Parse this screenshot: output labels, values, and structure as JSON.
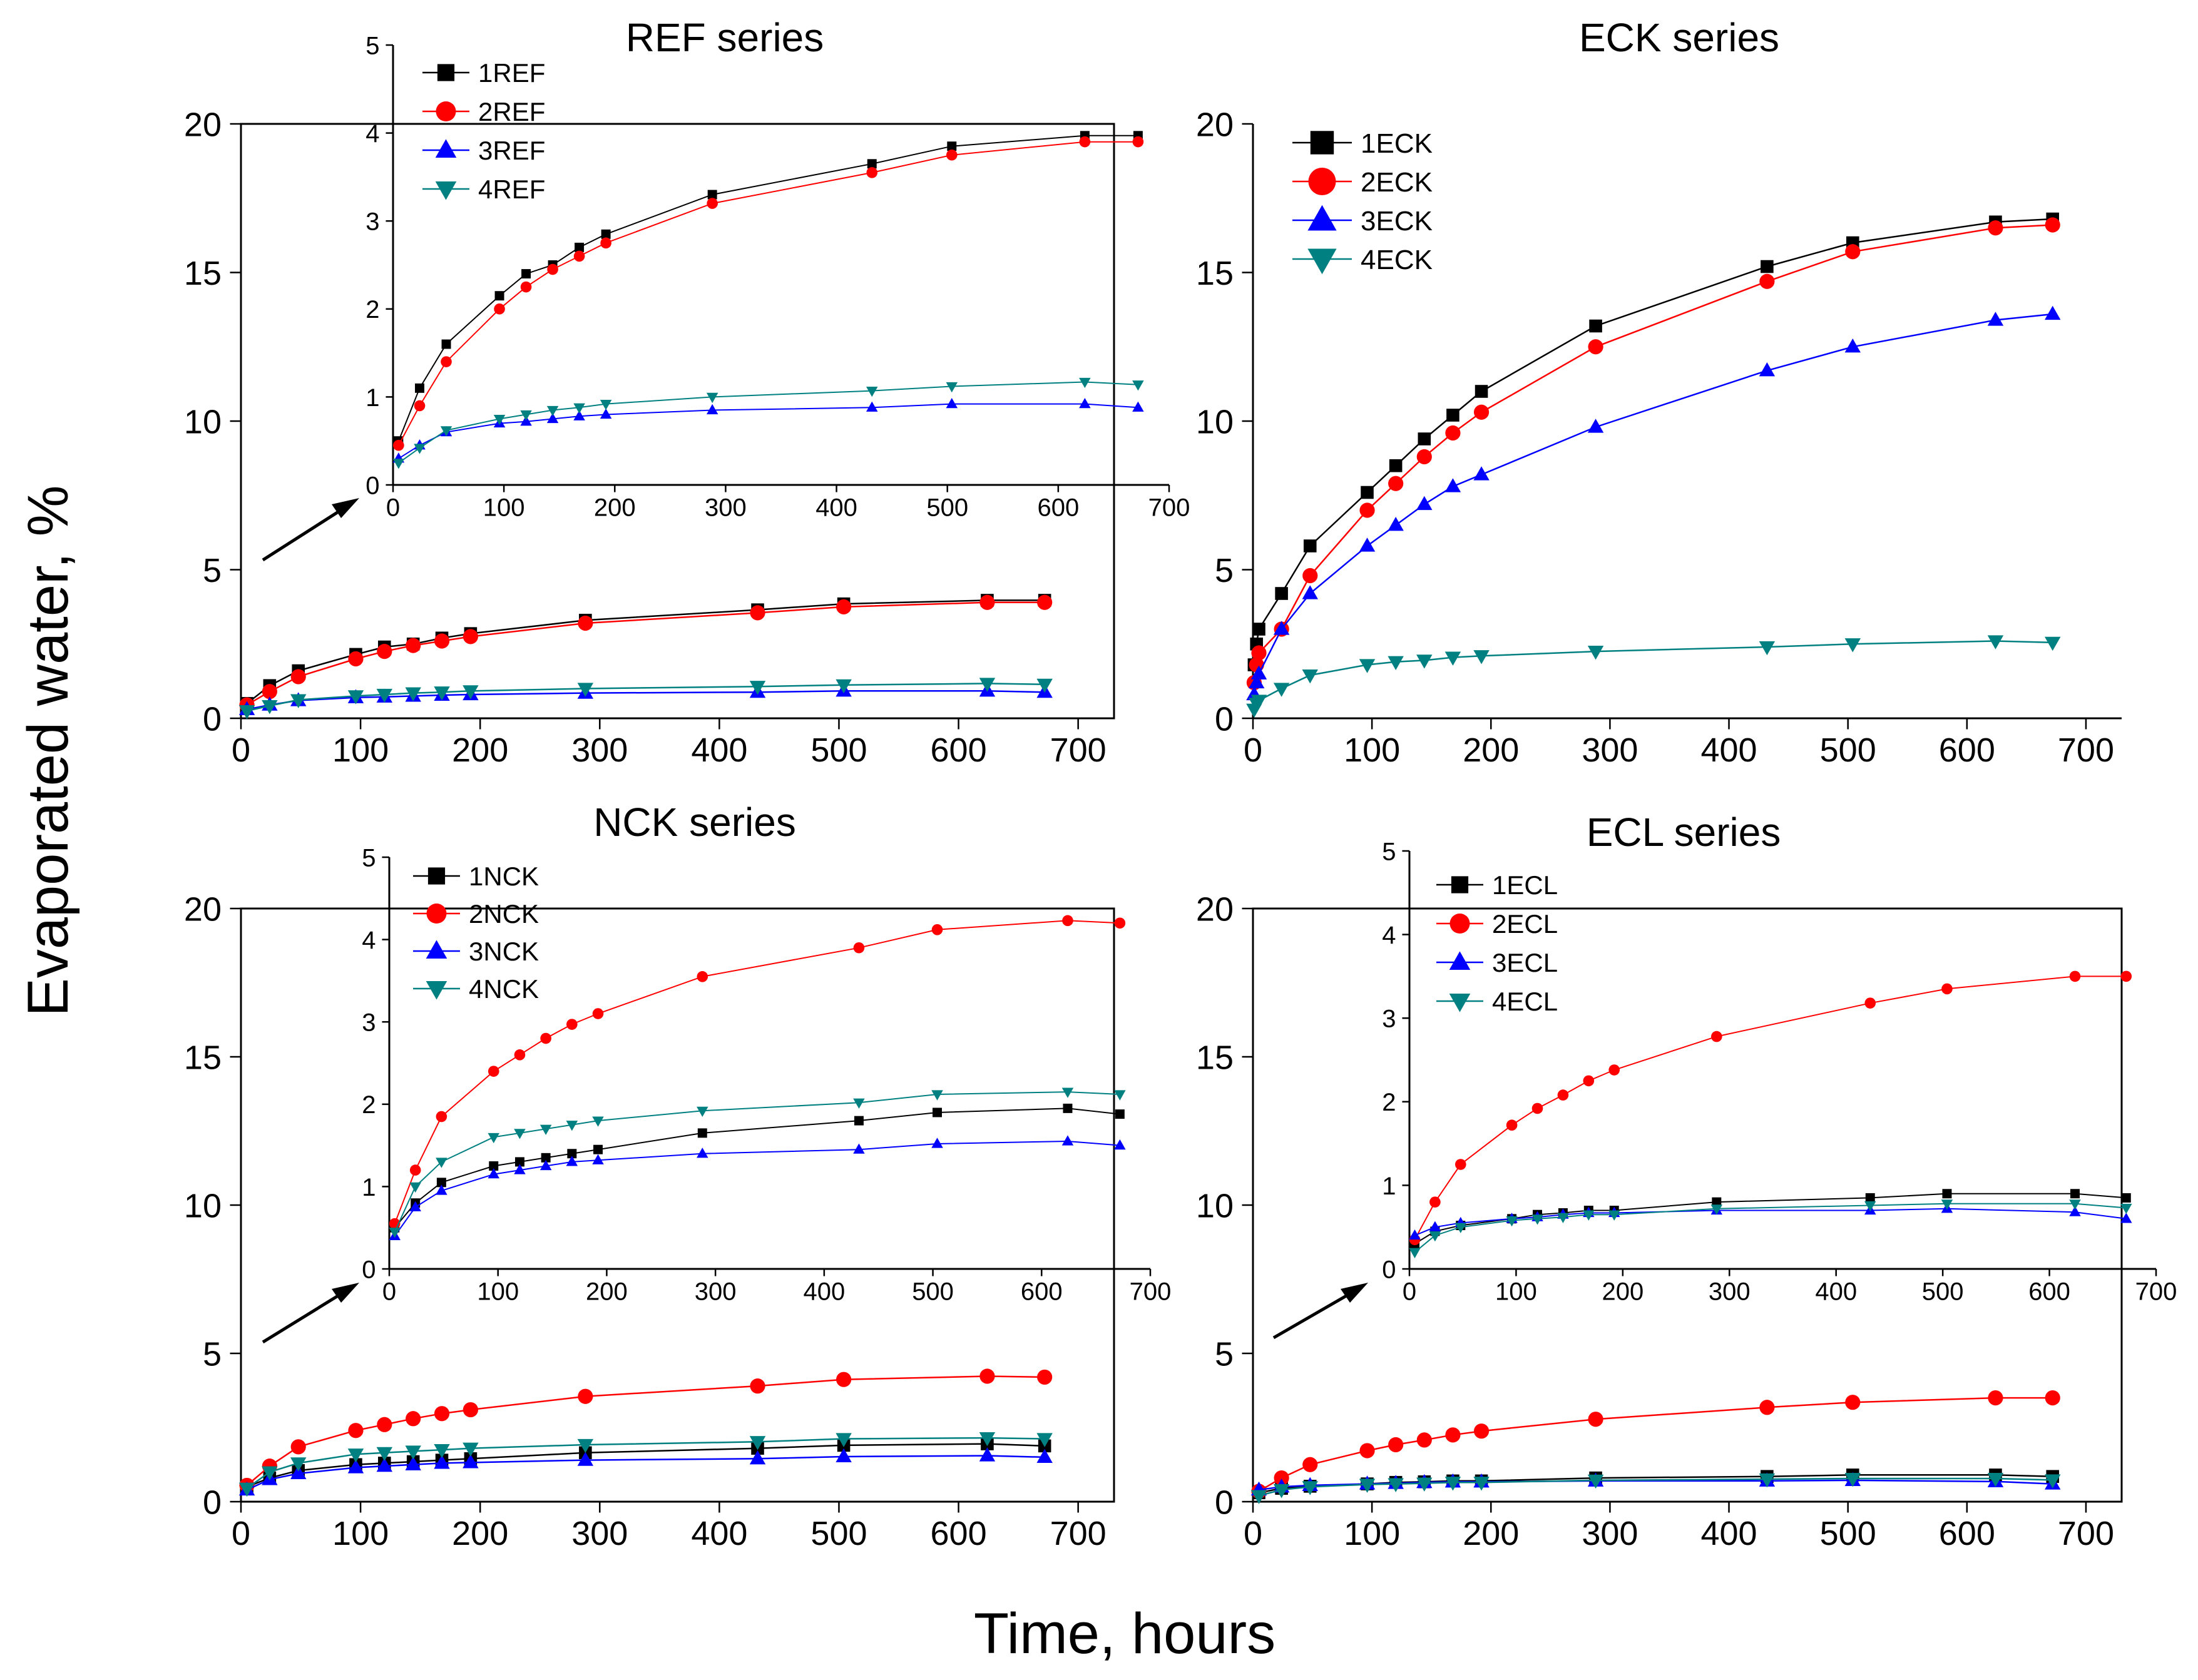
{
  "figure": {
    "ylabel": "Evaporated water, %",
    "xlabel": "Time, hours"
  },
  "colors": {
    "s1": "#000000",
    "s2": "#ff0000",
    "s3": "#0000ff",
    "s4": "#008080"
  },
  "chart_data": [
    {
      "id": "ref-main",
      "type": "line",
      "title": "REF series",
      "xlabel": "Time, hours",
      "ylabel": "Evaporated water, %",
      "xlim": [
        0,
        730
      ],
      "ylim": [
        0,
        20
      ],
      "x_ticks": [
        0,
        100,
        200,
        300,
        400,
        500,
        600,
        700
      ],
      "y_ticks": [
        0,
        5,
        10,
        15,
        20
      ],
      "x": [
        5,
        24,
        48,
        96,
        120,
        144,
        168,
        192,
        288,
        432,
        504,
        624,
        672
      ],
      "series": [
        {
          "name": "1REF",
          "values": [
            0.5,
            1.1,
            1.6,
            2.15,
            2.4,
            2.5,
            2.7,
            2.85,
            3.3,
            3.65,
            3.85,
            3.97,
            3.97
          ]
        },
        {
          "name": "2REF",
          "values": [
            0.45,
            0.9,
            1.4,
            2.0,
            2.25,
            2.45,
            2.6,
            2.75,
            3.2,
            3.55,
            3.75,
            3.9,
            3.9
          ]
        },
        {
          "name": "3REF",
          "values": [
            0.3,
            0.45,
            0.6,
            0.7,
            0.72,
            0.75,
            0.78,
            0.8,
            0.85,
            0.88,
            0.92,
            0.92,
            0.88
          ]
        },
        {
          "name": "4REF",
          "values": [
            0.25,
            0.42,
            0.62,
            0.75,
            0.8,
            0.85,
            0.88,
            0.92,
            1.0,
            1.07,
            1.12,
            1.17,
            1.14
          ]
        }
      ]
    },
    {
      "id": "ref-inset",
      "type": "line",
      "title": "",
      "legend": [
        "1REF",
        "2REF",
        "3REF",
        "4REF"
      ],
      "xlim": [
        0,
        700
      ],
      "ylim": [
        0,
        5
      ],
      "x_ticks": [
        0,
        100,
        200,
        300,
        400,
        500,
        600,
        700
      ],
      "y_ticks": [
        0,
        1,
        2,
        3,
        4,
        5
      ],
      "series_ref": "ref-main"
    },
    {
      "id": "eck-main",
      "type": "line",
      "title": "ECK series",
      "legend": [
        "1ECK",
        "2ECK",
        "3ECK",
        "4ECK"
      ],
      "xlim": [
        0,
        730
      ],
      "ylim": [
        0,
        20
      ],
      "x_ticks": [
        0,
        100,
        200,
        300,
        400,
        500,
        600,
        700
      ],
      "y_ticks": [
        0,
        5,
        10,
        15,
        20
      ],
      "x": [
        1,
        3,
        5,
        24,
        48,
        96,
        120,
        144,
        168,
        192,
        288,
        432,
        504,
        624,
        672
      ],
      "series": [
        {
          "name": "1ECK",
          "values": [
            1.8,
            2.5,
            3.0,
            4.2,
            5.8,
            7.6,
            8.5,
            9.4,
            10.2,
            11.0,
            13.2,
            15.2,
            16.0,
            16.7,
            16.8
          ]
        },
        {
          "name": "2ECK",
          "values": [
            1.2,
            1.8,
            2.2,
            3.0,
            4.8,
            7.0,
            7.9,
            8.8,
            9.6,
            10.3,
            12.5,
            14.7,
            15.7,
            16.5,
            16.6
          ]
        },
        {
          "name": "3ECK",
          "values": [
            0.8,
            1.2,
            1.5,
            3.0,
            4.2,
            5.8,
            6.5,
            7.2,
            7.8,
            8.2,
            9.8,
            11.7,
            12.5,
            13.4,
            13.6
          ]
        },
        {
          "name": "4ECK",
          "values": [
            0.3,
            0.5,
            0.6,
            1.0,
            1.45,
            1.8,
            1.9,
            1.95,
            2.05,
            2.1,
            2.25,
            2.4,
            2.5,
            2.6,
            2.55
          ]
        }
      ]
    },
    {
      "id": "nck-main",
      "type": "line",
      "title": "NCK series",
      "xlim": [
        0,
        730
      ],
      "ylim": [
        0,
        20
      ],
      "x_ticks": [
        0,
        100,
        200,
        300,
        400,
        500,
        600,
        700
      ],
      "y_ticks": [
        0,
        5,
        10,
        15,
        20
      ],
      "x": [
        5,
        24,
        48,
        96,
        120,
        144,
        168,
        192,
        288,
        432,
        504,
        624,
        672
      ],
      "series": [
        {
          "name": "1NCK",
          "values": [
            0.5,
            0.8,
            1.05,
            1.25,
            1.3,
            1.35,
            1.4,
            1.45,
            1.65,
            1.8,
            1.9,
            1.95,
            1.88
          ]
        },
        {
          "name": "2NCK",
          "values": [
            0.55,
            1.2,
            1.85,
            2.4,
            2.6,
            2.8,
            2.97,
            3.1,
            3.55,
            3.9,
            4.12,
            4.23,
            4.2
          ]
        },
        {
          "name": "3NCK",
          "values": [
            0.4,
            0.75,
            0.95,
            1.15,
            1.2,
            1.25,
            1.3,
            1.32,
            1.4,
            1.45,
            1.52,
            1.55,
            1.5
          ]
        },
        {
          "name": "4NCK",
          "values": [
            0.45,
            1.0,
            1.3,
            1.6,
            1.65,
            1.7,
            1.75,
            1.8,
            1.92,
            2.02,
            2.12,
            2.15,
            2.12
          ]
        }
      ]
    },
    {
      "id": "nck-inset",
      "type": "line",
      "title": "",
      "legend": [
        "1NCK",
        "2NCK",
        "3NCK",
        "4NCK"
      ],
      "xlim": [
        0,
        700
      ],
      "ylim": [
        0,
        5
      ],
      "x_ticks": [
        0,
        100,
        200,
        300,
        400,
        500,
        600,
        700
      ],
      "y_ticks": [
        0,
        1,
        2,
        3,
        4,
        5
      ],
      "series_ref": "nck-main"
    },
    {
      "id": "ecl-main",
      "type": "line",
      "title": "ECL series",
      "xlim": [
        0,
        730
      ],
      "ylim": [
        0,
        20
      ],
      "x_ticks": [
        0,
        100,
        200,
        300,
        400,
        500,
        600,
        700
      ],
      "y_ticks": [
        0,
        5,
        10,
        15,
        20
      ],
      "x": [
        5,
        24,
        48,
        96,
        120,
        144,
        168,
        192,
        288,
        432,
        504,
        624,
        672
      ],
      "series": [
        {
          "name": "1ECL",
          "values": [
            0.3,
            0.45,
            0.52,
            0.6,
            0.65,
            0.67,
            0.7,
            0.7,
            0.8,
            0.85,
            0.9,
            0.9,
            0.85
          ]
        },
        {
          "name": "2ECL",
          "values": [
            0.35,
            0.8,
            1.25,
            1.72,
            1.92,
            2.08,
            2.25,
            2.38,
            2.78,
            3.18,
            3.35,
            3.5,
            3.5
          ]
        },
        {
          "name": "3ECL",
          "values": [
            0.4,
            0.5,
            0.55,
            0.6,
            0.62,
            0.65,
            0.67,
            0.67,
            0.7,
            0.7,
            0.72,
            0.68,
            0.6
          ]
        },
        {
          "name": "4ECL",
          "values": [
            0.2,
            0.4,
            0.5,
            0.58,
            0.6,
            0.62,
            0.65,
            0.65,
            0.72,
            0.76,
            0.78,
            0.78,
            0.73
          ]
        }
      ]
    },
    {
      "id": "ecl-inset",
      "type": "line",
      "title": "",
      "legend": [
        "1ECL",
        "2ECL",
        "3ECL",
        "4ECL"
      ],
      "xlim": [
        0,
        700
      ],
      "ylim": [
        0,
        5
      ],
      "x_ticks": [
        0,
        100,
        200,
        300,
        400,
        500,
        600,
        700
      ],
      "y_ticks": [
        0,
        1,
        2,
        3,
        4,
        5
      ],
      "series_ref": "ecl-main"
    }
  ]
}
